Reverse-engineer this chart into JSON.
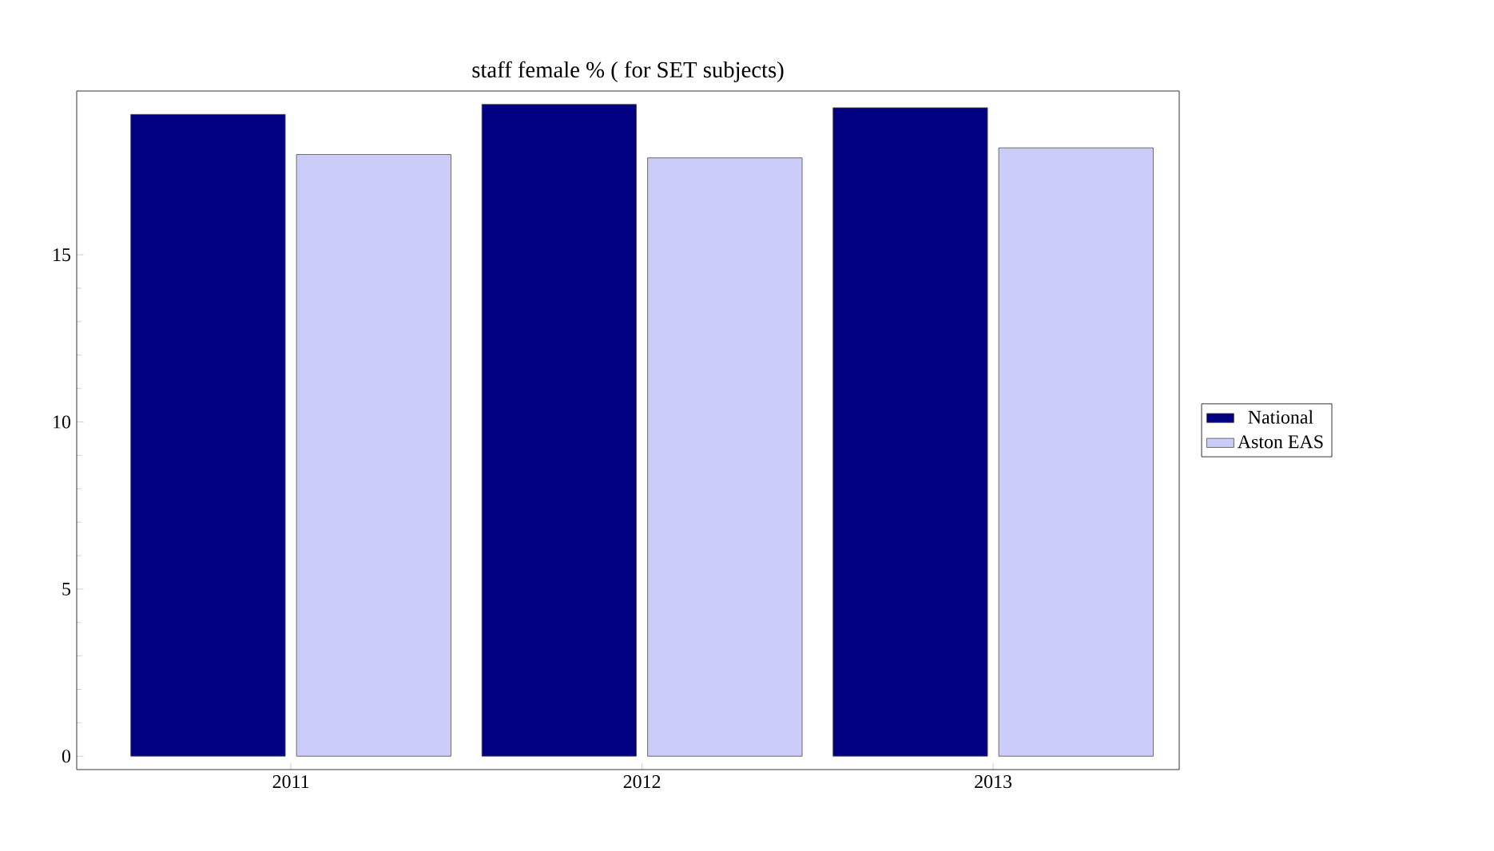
{
  "chart_data": {
    "type": "bar",
    "title": "staff female % ( for SET subjects)",
    "categories": [
      "2011",
      "2012",
      "2013"
    ],
    "series": [
      {
        "name": "National",
        "color": "#000080",
        "values": [
          19.2,
          19.5,
          19.4
        ]
      },
      {
        "name": "Aston EAS",
        "color": "#ccccf8",
        "values": [
          18.0,
          17.9,
          18.2
        ]
      }
    ],
    "ylim": [
      -0.4,
      19.9
    ],
    "yticks": [
      0,
      5,
      10,
      15
    ],
    "grid": false,
    "legend": "right"
  }
}
